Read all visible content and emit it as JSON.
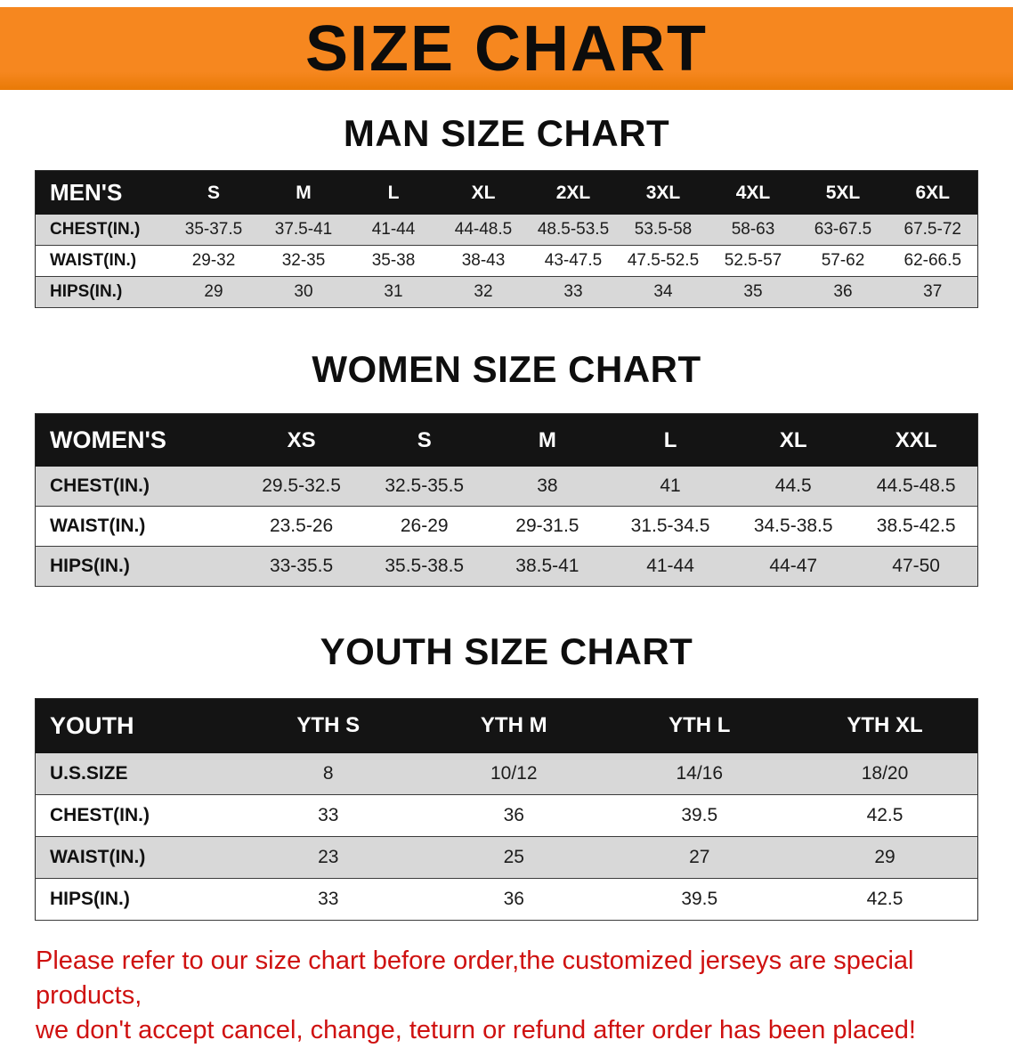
{
  "banner": {
    "title": "SIZE CHART"
  },
  "sections": {
    "men": {
      "heading": "MAN SIZE CHART",
      "table": {
        "header": [
          "MEN'S",
          "S",
          "M",
          "L",
          "XL",
          "2XL",
          "3XL",
          "4XL",
          "5XL",
          "6XL"
        ],
        "rows": [
          [
            "CHEST(IN.)",
            "35-37.5",
            "37.5-41",
            "41-44",
            "44-48.5",
            "48.5-53.5",
            "53.5-58",
            "58-63",
            "63-67.5",
            "67.5-72"
          ],
          [
            "WAIST(IN.)",
            "29-32",
            "32-35",
            "35-38",
            "38-43",
            "43-47.5",
            "47.5-52.5",
            "52.5-57",
            "57-62",
            "62-66.5"
          ],
          [
            "HIPS(IN.)",
            "29",
            "30",
            "31",
            "32",
            "33",
            "34",
            "35",
            "36",
            "37"
          ]
        ]
      }
    },
    "women": {
      "heading": "WOMEN SIZE CHART",
      "table": {
        "header": [
          "WOMEN'S",
          "XS",
          "S",
          "M",
          "L",
          "XL",
          "XXL"
        ],
        "rows": [
          [
            "CHEST(IN.)",
            "29.5-32.5",
            "32.5-35.5",
            "38",
            "41",
            "44.5",
            "44.5-48.5"
          ],
          [
            "WAIST(IN.)",
            "23.5-26",
            "26-29",
            "29-31.5",
            "31.5-34.5",
            "34.5-38.5",
            "38.5-42.5"
          ],
          [
            "HIPS(IN.)",
            "33-35.5",
            "35.5-38.5",
            "38.5-41",
            "41-44",
            "44-47",
            "47-50"
          ]
        ]
      }
    },
    "youth": {
      "heading": "YOUTH SIZE CHART",
      "table": {
        "header": [
          "YOUTH",
          "YTH S",
          "YTH M",
          "YTH L",
          "YTH XL"
        ],
        "rows": [
          [
            "U.S.SIZE",
            "8",
            "10/12",
            "14/16",
            "18/20"
          ],
          [
            "CHEST(IN.)",
            "33",
            "36",
            "39.5",
            "42.5"
          ],
          [
            "WAIST(IN.)",
            "23",
            "25",
            "27",
            "29"
          ],
          [
            "HIPS(IN.)",
            "33",
            "36",
            "39.5",
            "42.5"
          ]
        ]
      }
    }
  },
  "disclaimer": {
    "line1": "Please refer to our size chart before order,the customized jerseys are special products,",
    "line2": "we don't accept cancel, change, teturn or refund after order has been placed!"
  },
  "colors": {
    "banner_bg": "#f6871f",
    "banner_bg_deep": "#e97a06",
    "table_header_bg": "#141414",
    "table_header_text": "#ffffff",
    "row_stripe": "#d8d8d8",
    "heading_text": "#0e0e0e",
    "disclaimer_text": "#cf1110"
  }
}
